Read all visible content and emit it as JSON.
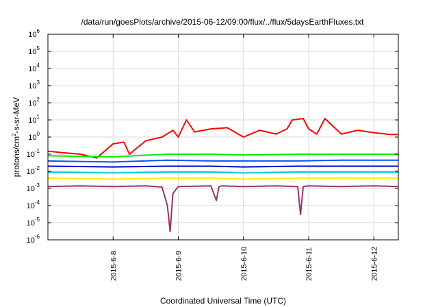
{
  "chart_data": {
    "type": "line",
    "title": "/data/run/goesPlots/archive/2015-06-12/09:00/flux/../flux/5daysEarthFluxes.txt",
    "xlabel": "Coordinated Universal Time (UTC)",
    "ylabel": "protons/cm²-s-sr-MeV",
    "ylabel_parts": {
      "pre": "protons/cm",
      "sup": "2",
      "post": "-s-sr-MeV"
    },
    "yscale": "log",
    "ylim": [
      1e-06,
      1000000.0
    ],
    "xlim": [
      "2015-06-07T00:00",
      "2015-06-12T09:00"
    ],
    "xticks": [
      "2015-6-8",
      "2015-6-9",
      "2015-6-10",
      "2015-6-11",
      "2015-6-12"
    ],
    "yticks": [
      {
        "base": "10",
        "exp": "-6"
      },
      {
        "base": "10",
        "exp": "-5"
      },
      {
        "base": "10",
        "exp": "-4"
      },
      {
        "base": "10",
        "exp": "-3"
      },
      {
        "base": "10",
        "exp": "-2"
      },
      {
        "base": "10",
        "exp": "-1"
      },
      {
        "base": "10",
        "exp": "0"
      },
      {
        "base": "10",
        "exp": "1"
      },
      {
        "base": "10",
        "exp": "2"
      },
      {
        "base": "10",
        "exp": "3"
      },
      {
        "base": "10",
        "exp": "4"
      },
      {
        "base": "10",
        "exp": "5"
      },
      {
        "base": "10",
        "exp": "6"
      }
    ],
    "grid": true,
    "series": [
      {
        "color": "#ff0000",
        "x": [
          "2015-06-07T00:00",
          "2015-06-07T06:00",
          "2015-06-07T12:00",
          "2015-06-07T18:00",
          "2015-06-08T00:00",
          "2015-06-08T04:00",
          "2015-06-08T06:00",
          "2015-06-08T12:00",
          "2015-06-08T18:00",
          "2015-06-08T22:00",
          "2015-06-09T00:00",
          "2015-06-09T03:00",
          "2015-06-09T06:00",
          "2015-06-09T12:00",
          "2015-06-09T18:00",
          "2015-06-10T00:00",
          "2015-06-10T06:00",
          "2015-06-10T12:00",
          "2015-06-10T16:00",
          "2015-06-10T18:00",
          "2015-06-10T22:00",
          "2015-06-11T00:00",
          "2015-06-11T03:00",
          "2015-06-11T06:00",
          "2015-06-11T12:00",
          "2015-06-11T18:00",
          "2015-06-12T00:00",
          "2015-06-12T06:00",
          "2015-06-12T09:00"
        ],
        "values": [
          0.15,
          0.12,
          0.1,
          0.06,
          0.4,
          0.5,
          0.1,
          0.6,
          1.0,
          2.5,
          1.0,
          10,
          2.0,
          3.0,
          3.5,
          1.0,
          2.5,
          1.5,
          3.0,
          10,
          12,
          3.0,
          1.5,
          12,
          1.5,
          2.5,
          1.8,
          1.4,
          1.4
        ]
      },
      {
        "color": "#00ee00",
        "x": [
          "2015-06-07T00:00",
          "2015-06-08T00:00",
          "2015-06-08T20:00",
          "2015-06-09T12:00",
          "2015-06-10T00:00",
          "2015-06-10T20:00",
          "2015-06-11T12:00",
          "2015-06-12T09:00"
        ],
        "values": [
          0.08,
          0.07,
          0.1,
          0.1,
          0.09,
          0.1,
          0.1,
          0.1
        ]
      },
      {
        "color": "#0055ff",
        "x": [
          "2015-06-07T00:00",
          "2015-06-08T00:00",
          "2015-06-08T20:00",
          "2015-06-09T12:00",
          "2015-06-10T00:00",
          "2015-06-10T20:00",
          "2015-06-11T12:00",
          "2015-06-12T09:00"
        ],
        "values": [
          0.04,
          0.035,
          0.045,
          0.04,
          0.04,
          0.04,
          0.045,
          0.045
        ]
      },
      {
        "color": "#0000cc",
        "x": [
          "2015-06-07T00:00",
          "2015-06-08T00:00",
          "2015-06-08T20:00",
          "2015-06-09T12:00",
          "2015-06-10T00:00",
          "2015-06-10T20:00",
          "2015-06-11T12:00",
          "2015-06-12T09:00"
        ],
        "values": [
          0.02,
          0.018,
          0.02,
          0.02,
          0.018,
          0.02,
          0.02,
          0.02
        ]
      },
      {
        "color": "#00cccc",
        "x": [
          "2015-06-07T00:00",
          "2015-06-08T00:00",
          "2015-06-08T20:00",
          "2015-06-09T12:00",
          "2015-06-10T00:00",
          "2015-06-10T20:00",
          "2015-06-11T12:00",
          "2015-06-12T09:00"
        ],
        "values": [
          0.009,
          0.008,
          0.009,
          0.009,
          0.008,
          0.009,
          0.009,
          0.009
        ]
      },
      {
        "color": "#ffee00",
        "x": [
          "2015-06-07T00:00",
          "2015-06-08T00:00",
          "2015-06-08T20:00",
          "2015-06-09T12:00",
          "2015-06-10T00:00",
          "2015-06-10T20:00",
          "2015-06-11T12:00",
          "2015-06-12T09:00"
        ],
        "values": [
          0.004,
          0.0035,
          0.004,
          0.004,
          0.0035,
          0.004,
          0.004,
          0.004
        ]
      },
      {
        "color": "#993366",
        "x": [
          "2015-06-07T00:00",
          "2015-06-07T12:00",
          "2015-06-08T00:00",
          "2015-06-08T12:00",
          "2015-06-08T18:00",
          "2015-06-08T20:00",
          "2015-06-08T21:00",
          "2015-06-08T22:00",
          "2015-06-09T00:00",
          "2015-06-09T12:00",
          "2015-06-09T14:00",
          "2015-06-09T15:00",
          "2015-06-09T16:00",
          "2015-06-10T00:00",
          "2015-06-10T12:00",
          "2015-06-10T20:00",
          "2015-06-10T21:00",
          "2015-06-10T22:00",
          "2015-06-11T00:00",
          "2015-06-11T12:00",
          "2015-06-12T00:00",
          "2015-06-12T09:00"
        ],
        "values": [
          0.0013,
          0.0014,
          0.0013,
          0.0014,
          0.0012,
          0.0001,
          3e-06,
          0.0005,
          0.0013,
          0.0014,
          0.0002,
          0.0013,
          0.0014,
          0.0013,
          0.0014,
          0.0013,
          3e-05,
          0.0013,
          0.0014,
          0.0013,
          0.0014,
          0.0013
        ]
      }
    ]
  }
}
